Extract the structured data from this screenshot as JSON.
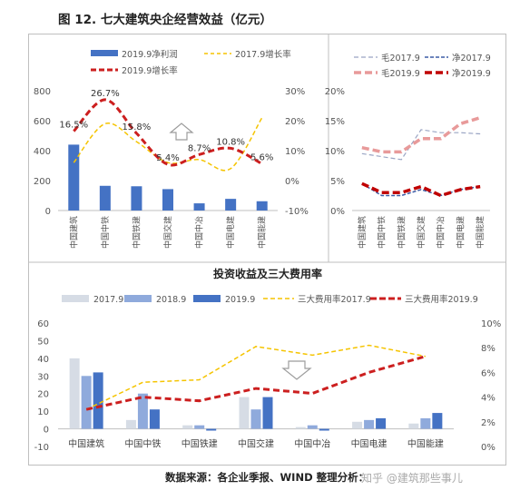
{
  "title": "图 12. 七大建筑央企经营效益（亿元）",
  "source": "数据来源：各企业季报、WIND   整理分析：",
  "watermark": "知乎 @建筑那些事儿",
  "companies": [
    "中国建筑",
    "中国中铁",
    "中国铁建",
    "中国交建",
    "中国中冶",
    "中国电建",
    "中国能建"
  ],
  "chart_data": [
    {
      "type": "bar",
      "categories": [
        "中国建筑",
        "中国中铁",
        "中国铁建",
        "中国交建",
        "中国中冶",
        "中国电建",
        "中国能建"
      ],
      "ylim_left": [
        0,
        800
      ],
      "left_ticks": [
        "0",
        "200",
        "400",
        "600",
        "800"
      ],
      "ylim_right": [
        -10,
        30
      ],
      "right_ticks": [
        "-10%",
        "0%",
        "10%",
        "20%",
        "30%"
      ],
      "series": [
        {
          "name": "2019.9净利润",
          "kind": "bar",
          "axis": "left",
          "color": "#4472c4",
          "values": [
            440,
            165,
            162,
            143,
            48,
            78,
            62
          ]
        },
        {
          "name": "2017.9增长率",
          "kind": "line",
          "axis": "right",
          "color": "#f5c400",
          "dash": "dashed",
          "values": [
            6,
            19,
            13,
            6,
            7,
            4,
            21
          ]
        },
        {
          "name": "2019.9增长率",
          "kind": "line",
          "axis": "right",
          "color": "#cc1f1f",
          "dash": "dashed",
          "values": [
            16.5,
            27,
            15.8,
            5.4,
            8.7,
            10.8,
            5.6
          ]
        }
      ],
      "data_labels": [
        "16.5%",
        "26.7%",
        "15.8%",
        "5.4%",
        "8.7%",
        "10.8%",
        "5.6%"
      ]
    },
    {
      "type": "line",
      "categories": [
        "中国建筑",
        "中国中铁",
        "中国铁建",
        "中国交建",
        "中国中冶",
        "中国电建",
        "中国能建"
      ],
      "ylim": [
        0,
        20
      ],
      "ticks": [
        "0%",
        "5%",
        "10%",
        "15%",
        "20%"
      ],
      "series": [
        {
          "name": "毛2017.9",
          "color": "#9aa5c4",
          "values": [
            9.5,
            9,
            8.5,
            13.5,
            13,
            13,
            12.8
          ]
        },
        {
          "name": "净2017.9",
          "color": "#3b5ba5",
          "values": [
            4.5,
            2.5,
            2.5,
            3.5,
            2.5,
            3.5,
            4
          ]
        },
        {
          "name": "毛2019.9",
          "color": "#e89a9a",
          "values": [
            10.5,
            9.8,
            9.8,
            12,
            12,
            14.5,
            15.5
          ]
        },
        {
          "name": "净2019.9",
          "color": "#c00000",
          "values": [
            4.5,
            3,
            3,
            4,
            2.5,
            3.5,
            4
          ]
        }
      ]
    },
    {
      "type": "bar",
      "title": "投资收益及三大费用率",
      "categories": [
        "中国建筑",
        "中国中铁",
        "中国铁建",
        "中国交建",
        "中国中冶",
        "中国电建",
        "中国能建"
      ],
      "ylim_left": [
        -10,
        60
      ],
      "left_ticks": [
        "-10",
        "0",
        "10",
        "20",
        "30",
        "40",
        "50",
        "60"
      ],
      "ylim_right": [
        0,
        10
      ],
      "right_ticks": [
        "0%",
        "2%",
        "4%",
        "6%",
        "8%",
        "10%"
      ],
      "series": [
        {
          "name": "2017.9",
          "kind": "bar",
          "axis": "left",
          "color": "#d6dce5",
          "values": [
            40,
            5,
            2,
            18,
            1,
            4,
            3
          ]
        },
        {
          "name": "2018.9",
          "kind": "bar",
          "axis": "left",
          "color": "#8faadc",
          "values": [
            30,
            20,
            2,
            11,
            2,
            5,
            6
          ]
        },
        {
          "name": "2019.9",
          "kind": "bar",
          "axis": "left",
          "color": "#4472c4",
          "values": [
            32,
            11,
            -1,
            18,
            -1,
            6,
            9
          ]
        },
        {
          "name": "三大费用率2017.9",
          "kind": "line",
          "axis": "right",
          "color": "#f5c400",
          "values": [
            3,
            5.2,
            5.4,
            8.1,
            7.4,
            8.2,
            7.3
          ]
        },
        {
          "name": "三大费用率2019.9",
          "kind": "line",
          "axis": "right",
          "color": "#cc1f1f",
          "values": [
            3,
            4,
            3.7,
            4.7,
            4.3,
            6,
            7.3
          ]
        }
      ]
    }
  ]
}
